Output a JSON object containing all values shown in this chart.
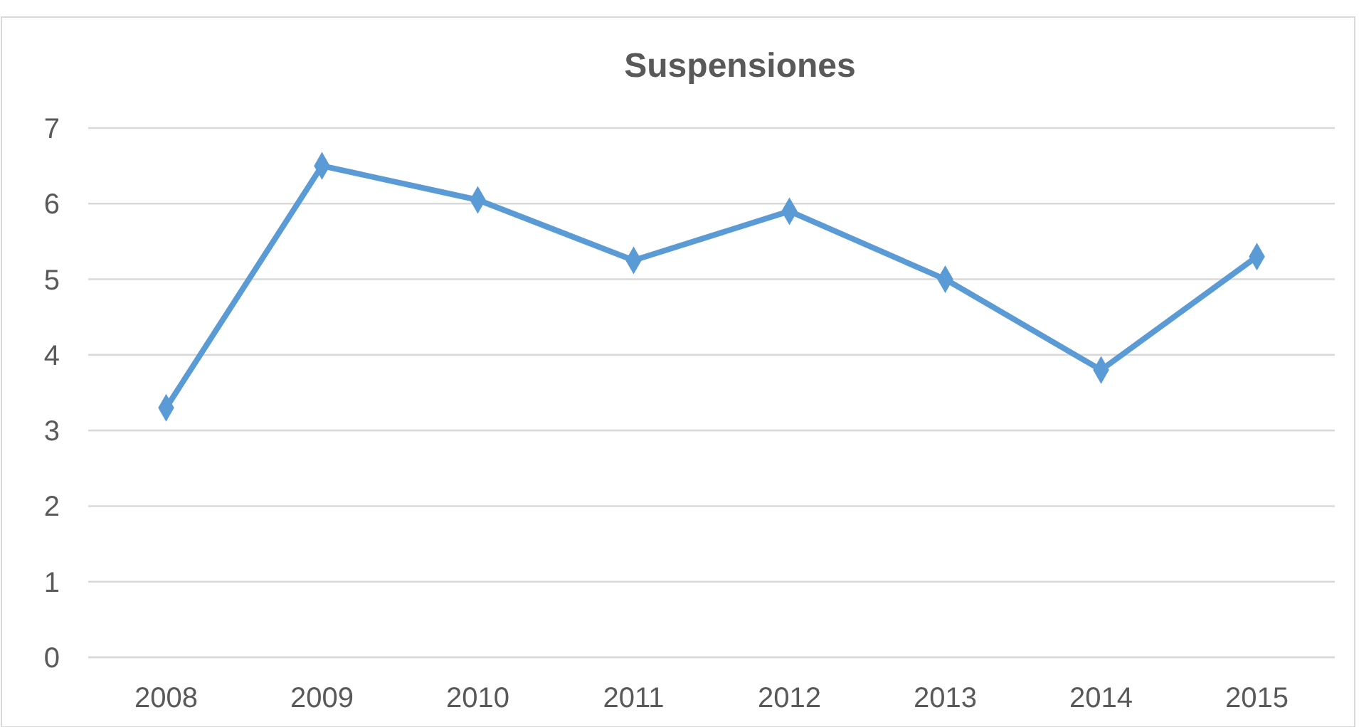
{
  "chart_data": {
    "type": "line",
    "title": "Suspensiones",
    "categories": [
      "2008",
      "2009",
      "2010",
      "2011",
      "2012",
      "2013",
      "2014",
      "2015"
    ],
    "series": [
      {
        "color": "#5b9bd5",
        "values": [
          3.3,
          6.5,
          6.05,
          5.25,
          5.9,
          5.0,
          3.8,
          5.3
        ]
      }
    ],
    "ylim": [
      0,
      7
    ],
    "yticks": [
      0,
      1,
      2,
      3,
      4,
      5,
      6,
      7
    ],
    "grid": "y",
    "marker": "diamond",
    "line_style": "solid"
  }
}
